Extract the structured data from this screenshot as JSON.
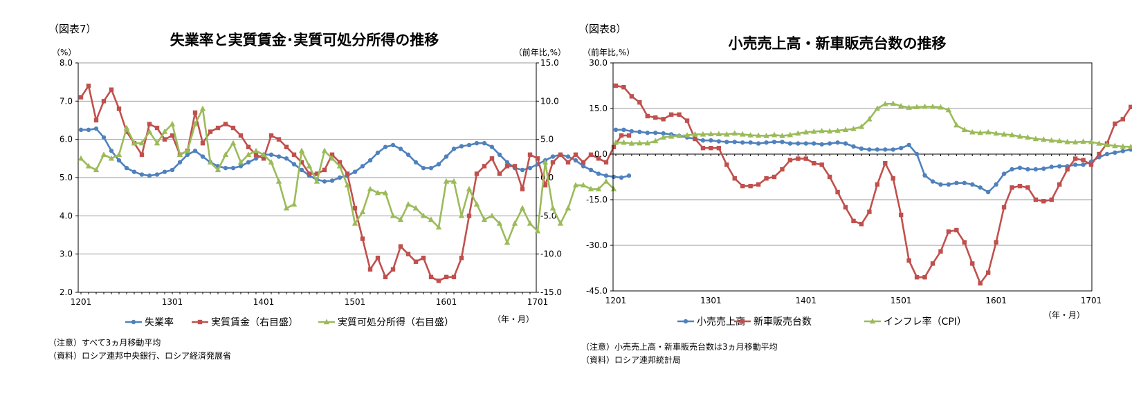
{
  "chart_data": [
    {
      "type": "line",
      "label": "（図表7）",
      "title": "失業率と実質賃金･実質可処分所得の推移",
      "left_unit": "（%）",
      "right_unit": "（前年比,%）",
      "xlabel": "（年・月）",
      "ylim": [
        2.0,
        8.0
      ],
      "y2lim": [
        -15.0,
        15.0
      ],
      "y_ticks": [
        "8.0",
        "7.0",
        "6.0",
        "5.0",
        "4.0",
        "3.0",
        "2.0"
      ],
      "y2_ticks": [
        "15.0",
        "10.0",
        "5.0",
        "0.0",
        "-5.0",
        "-10.0",
        "-15.0"
      ],
      "x_ticks": [
        "1201",
        "1301",
        "1401",
        "1501",
        "1601",
        "1701"
      ],
      "grid": true,
      "legend_position": "bottom",
      "series": [
        {
          "name": "失業率",
          "color": "#4f81bd",
          "marker": "circle",
          "axis": "left",
          "values": [
            6.25,
            6.25,
            6.28,
            6.05,
            5.7,
            5.45,
            5.25,
            5.15,
            5.08,
            5.05,
            5.08,
            5.15,
            5.2,
            5.4,
            5.6,
            5.7,
            5.55,
            5.4,
            5.3,
            5.25,
            5.25,
            5.3,
            5.4,
            5.5,
            5.6,
            5.6,
            5.55,
            5.5,
            5.35,
            5.2,
            5.05,
            4.95,
            4.9,
            4.92,
            5.0,
            5.05,
            5.15,
            5.3,
            5.45,
            5.65,
            5.8,
            5.85,
            5.75,
            5.6,
            5.4,
            5.25,
            5.25,
            5.35,
            5.55,
            5.75,
            5.82,
            5.85,
            5.9,
            5.9,
            5.8,
            5.6,
            5.4,
            5.25,
            5.2,
            5.25,
            5.35,
            5.45,
            5.55,
            5.6,
            5.55,
            5.45,
            5.3,
            5.2,
            5.1,
            5.05,
            5.02,
            5.0,
            5.05
          ]
        },
        {
          "name": "実質賃金（右目盛）",
          "color": "#c0504d",
          "marker": "square",
          "axis": "right",
          "values": [
            10.5,
            12.0,
            7.5,
            10.0,
            11.5,
            9.0,
            6.0,
            4.5,
            3.0,
            7.0,
            6.5,
            5.0,
            5.5,
            3.0,
            3.5,
            8.5,
            4.5,
            6.0,
            6.5,
            7.0,
            6.5,
            5.5,
            4.0,
            3.0,
            2.5,
            5.5,
            5.0,
            4.0,
            3.0,
            2.0,
            0.5,
            0.5,
            1.0,
            3.0,
            2.0,
            0.5,
            -4.0,
            -8.0,
            -12.0,
            -10.5,
            -13.0,
            -12.0,
            -9.0,
            -10.0,
            -11.0,
            -10.5,
            -13.0,
            -13.5,
            -13.0,
            -13.0,
            -10.5,
            -5.0,
            0.5,
            1.5,
            2.5,
            0.5,
            1.5,
            1.5,
            -1.5,
            3.0,
            2.5,
            -1.0,
            2.0,
            3.0,
            2.0,
            3.0,
            2.0,
            3.0,
            2.5,
            2.0,
            4.0,
            5.5,
            5.5
          ]
        },
        {
          "name": "実質可処分所得（右目盛）",
          "color": "#9bbb59",
          "marker": "triangle",
          "axis": "right",
          "values": [
            2.5,
            1.5,
            1.0,
            3.0,
            2.5,
            3.0,
            6.5,
            4.5,
            4.5,
            6.0,
            4.5,
            6.0,
            7.0,
            3.0,
            3.5,
            7.0,
            9.0,
            2.0,
            1.0,
            3.0,
            4.5,
            2.0,
            3.0,
            3.5,
            3.0,
            2.0,
            -0.5,
            -4.0,
            -3.5,
            3.5,
            1.5,
            -0.5,
            3.5,
            2.5,
            1.5,
            -1.0,
            -6.0,
            -4.5,
            -1.5,
            -2.0,
            -2.0,
            -5.0,
            -5.5,
            -3.5,
            -4.0,
            -5.0,
            -5.5,
            -6.5,
            -0.5,
            -0.5,
            -5.0,
            -1.5,
            -3.5,
            -5.5,
            -5.0,
            -6.0,
            -8.5,
            -6.0,
            -4.0,
            -6.0,
            -7.0,
            2.0,
            -4.0,
            -6.0,
            -4.0,
            -1.0,
            -1.0,
            -1.5,
            -1.5,
            -0.5,
            -1.5
          ]
        }
      ],
      "notes": [
        "（注意）すべて3ヵ月移動平均",
        "（資料）ロシア連邦中央銀行、ロシア経済発展省"
      ]
    },
    {
      "type": "line",
      "label": "（図表8）",
      "title": "小売売上高・新車販売台数の推移",
      "left_unit": "（前年比,%）",
      "xlabel": "（年・月）",
      "ylim": [
        -45.0,
        30.0
      ],
      "y_ticks": [
        "30.0",
        "15.0",
        "0.0",
        "-15.0",
        "-30.0",
        "-45.0"
      ],
      "x_ticks": [
        "1201",
        "1301",
        "1401",
        "1501",
        "1601",
        "1701"
      ],
      "grid": true,
      "legend_position": "bottom",
      "series": [
        {
          "name": "小売売上高",
          "color": "#4f81bd",
          "marker": "circle",
          "values": [
            8.0,
            8.0,
            7.5,
            7.3,
            7.0,
            7.0,
            6.8,
            6.5,
            6.0,
            5.5,
            5.0,
            4.5,
            4.5,
            4.2,
            4.0,
            4.0,
            3.8,
            3.8,
            3.5,
            3.8,
            4.0,
            4.0,
            3.5,
            3.5,
            3.5,
            3.5,
            3.2,
            3.5,
            3.8,
            3.5,
            2.5,
            1.8,
            1.5,
            1.5,
            1.5,
            1.5,
            2.0,
            3.0,
            0.0,
            -7.0,
            -9.0,
            -10.0,
            -10.0,
            -9.5,
            -9.5,
            -10.0,
            -11.0,
            -12.5,
            -10.0,
            -6.5,
            -5.0,
            -4.5,
            -5.0,
            -5.0,
            -4.8,
            -4.2,
            -4.0,
            -4.0,
            -3.5,
            -3.5,
            -2.5,
            -1.0,
            0.0,
            0.5,
            1.0,
            1.5,
            1.8,
            2.0,
            2.2,
            2.3,
            2.5
          ]
        },
        {
          "name": "新車販売台数",
          "color": "#c0504d",
          "marker": "square",
          "values": [
            22.5,
            22.0,
            19.0,
            17.0,
            12.5,
            12.0,
            11.5,
            13.0,
            13.0,
            11.0,
            5.0,
            2.0,
            2.0,
            2.0,
            -3.5,
            -8.0,
            -10.5,
            -10.5,
            -10.0,
            -8.0,
            -7.5,
            -5.0,
            -2.0,
            -1.5,
            -1.5,
            -3.0,
            -3.5,
            -7.5,
            -12.5,
            -17.5,
            -22.0,
            -23.0,
            -19.0,
            -10.0,
            -3.0,
            -8.0,
            -20.0,
            -35.0,
            -40.5,
            -40.5,
            -36.0,
            -32.0,
            -25.5,
            -25.0,
            -29.0,
            -36.0,
            -42.5,
            -39.0,
            -29.0,
            -17.5,
            -11.0,
            -10.5,
            -11.0,
            -15.0,
            -15.5,
            -15.0,
            -10.0,
            -5.0,
            -1.5,
            -2.0,
            -3.5,
            0.0,
            3.5,
            10.0,
            11.5,
            15.5,
            16.5,
            17.0,
            17.0,
            16.5,
            15.0
          ]
        },
        {
          "name": "インフレ率（CPI）",
          "color": "#9bbb59",
          "marker": "triangle",
          "values": [
            3.8,
            3.8,
            3.5,
            3.6,
            3.6,
            4.3,
            5.5,
            5.8,
            6.0,
            6.2,
            6.5,
            6.5,
            6.6,
            6.6,
            6.5,
            6.8,
            6.5,
            6.2,
            6.1,
            6.0,
            6.3,
            6.0,
            6.3,
            6.8,
            7.2,
            7.4,
            7.6,
            7.5,
            7.7,
            8.0,
            8.3,
            9.0,
            11.5,
            15.0,
            16.5,
            16.6,
            15.8,
            15.3,
            15.5,
            15.6,
            15.6,
            15.4,
            14.5,
            9.5,
            8.0,
            7.2,
            7.0,
            7.2,
            6.8,
            6.5,
            6.3,
            5.8,
            5.5,
            5.0,
            4.8,
            4.5,
            4.3,
            4.0,
            3.9,
            4.1,
            4.0,
            3.5,
            3.0,
            2.7,
            2.5,
            2.4,
            2.4,
            2.2
          ]
        }
      ],
      "notes": [
        "（注意）小売売上高・新車販売台数は3ヵ月移動平均",
        "（資料）ロシア連邦統計局"
      ]
    }
  ]
}
